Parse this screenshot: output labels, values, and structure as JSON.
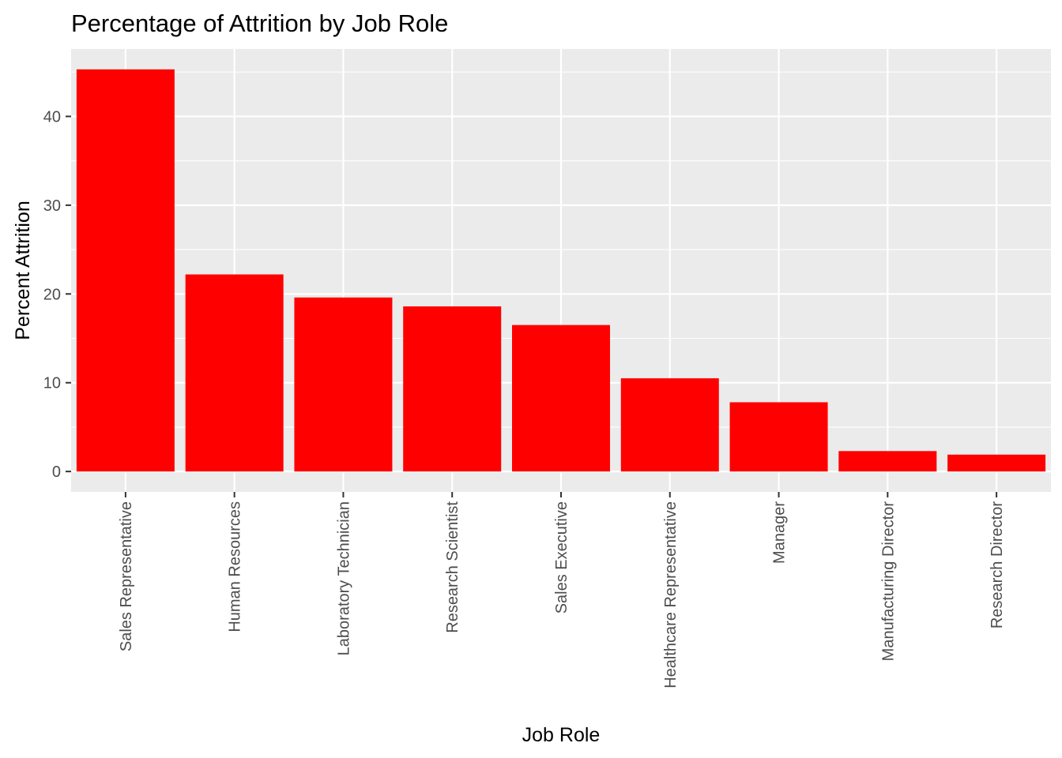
{
  "chart_data": {
    "type": "bar",
    "title": "Percentage of Attrition by Job Role",
    "xlabel": "Job Role",
    "ylabel": "Percent Attrition",
    "categories": [
      "Sales Representative",
      "Human Resources",
      "Laboratory Technician",
      "Research Scientist",
      "Sales Executive",
      "Healthcare Representative",
      "Manager",
      "Manufacturing Director",
      "Research Director"
    ],
    "values": [
      45.3,
      22.2,
      19.6,
      18.6,
      16.5,
      10.5,
      7.8,
      2.3,
      1.9
    ],
    "ylim": [
      -2.3,
      47.6
    ],
    "yticks": [
      0,
      10,
      20,
      30,
      40
    ],
    "grid": true,
    "legend": "none",
    "bar_color": "#FF0000",
    "panel_color": "#EBEBEB",
    "grid_color": "#FFFFFF"
  }
}
